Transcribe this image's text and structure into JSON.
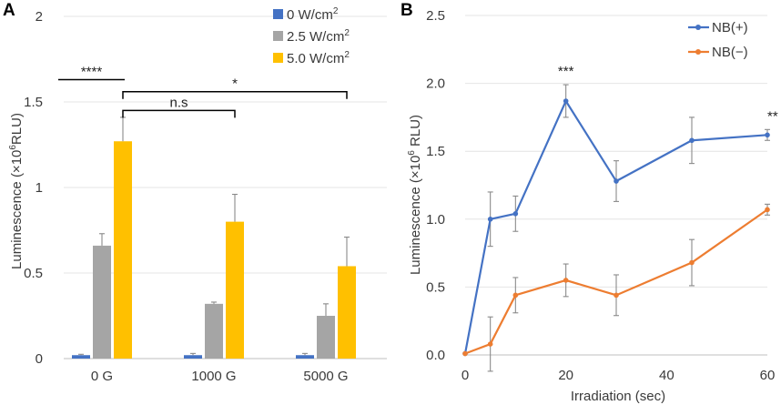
{
  "panel_a": {
    "letter": "A"
  },
  "panel_b": {
    "letter": "B"
  },
  "chart_data": [
    {
      "type": "bar",
      "ylabel_main": "Luminescence (×10",
      "ylabel_sup": "6",
      "ylabel_end": "RLU)",
      "ylim": [
        0,
        2
      ],
      "yticks": [
        "0",
        "0.5",
        "1",
        "1.5",
        "2"
      ],
      "ytick_values": [
        0,
        0.5,
        1,
        1.5,
        2
      ],
      "grid": true,
      "categories": [
        "0 G",
        "1000 G",
        "5000 G"
      ],
      "series": [
        {
          "name": "0 W/cm",
          "name_sup": "2",
          "color": "#4472c4",
          "values": [
            0.02,
            0.02,
            0.02
          ],
          "errors": [
            0.005,
            0.01,
            0.01
          ]
        },
        {
          "name": "2.5 W/cm",
          "name_sup": "2",
          "color": "#a5a5a5",
          "values": [
            0.66,
            0.32,
            0.25
          ],
          "errors": [
            0.07,
            0.01,
            0.07
          ]
        },
        {
          "name": "5.0 W/cm",
          "name_sup": "2",
          "color": "#ffc000",
          "values": [
            1.27,
            0.8,
            0.54
          ],
          "errors": [
            0.14,
            0.16,
            0.17
          ]
        }
      ],
      "legend_position": "top-right",
      "annotations": [
        {
          "label": "****",
          "from": "0 G / 0 W/cm2",
          "to": "0 G / 5.0 W/cm2",
          "y": 1.63
        },
        {
          "label": "*",
          "from": "0 G / 5.0 W/cm2",
          "to": "5000 G / 5.0 W/cm2",
          "y": 1.56
        },
        {
          "label": "n.s",
          "from": "0 G / 5.0 W/cm2",
          "to": "1000 G / 5.0 W/cm2",
          "y": 1.45
        }
      ]
    },
    {
      "type": "line",
      "xlabel": "Irradiation (sec)",
      "ylabel_main": "Luminescence (×10",
      "ylabel_sup": "6",
      "ylabel_end": " RLU)",
      "xlim": [
        0,
        60
      ],
      "ylim": [
        0,
        2.5
      ],
      "xticks": [
        "0",
        "20",
        "40",
        "60"
      ],
      "xtick_values": [
        0,
        20,
        40,
        60
      ],
      "yticks": [
        "0.0",
        "0.5",
        "1.0",
        "1.5",
        "2.0",
        "2.5"
      ],
      "ytick_values": [
        0,
        0.5,
        1.0,
        1.5,
        2.0,
        2.5
      ],
      "grid": true,
      "legend_position": "top-right",
      "series": [
        {
          "name": "NB(+)",
          "color": "#4472c4",
          "x": [
            0,
            5,
            10,
            20,
            30,
            45,
            60
          ],
          "y": [
            0.01,
            1.0,
            1.04,
            1.87,
            1.28,
            1.58,
            1.62
          ],
          "errors": [
            0,
            0.2,
            0.13,
            0.12,
            0.15,
            0.17,
            0.04
          ]
        },
        {
          "name": "NB(−)",
          "color": "#ed7d31",
          "x": [
            0,
            5,
            10,
            20,
            30,
            45,
            60
          ],
          "y": [
            0.01,
            0.08,
            0.44,
            0.55,
            0.44,
            0.68,
            1.07
          ],
          "errors": [
            0,
            0.2,
            0.13,
            0.12,
            0.15,
            0.17,
            0.04
          ]
        }
      ],
      "annotations": [
        {
          "label": "***",
          "x": 20
        },
        {
          "label": "**",
          "x": 60
        }
      ]
    }
  ]
}
